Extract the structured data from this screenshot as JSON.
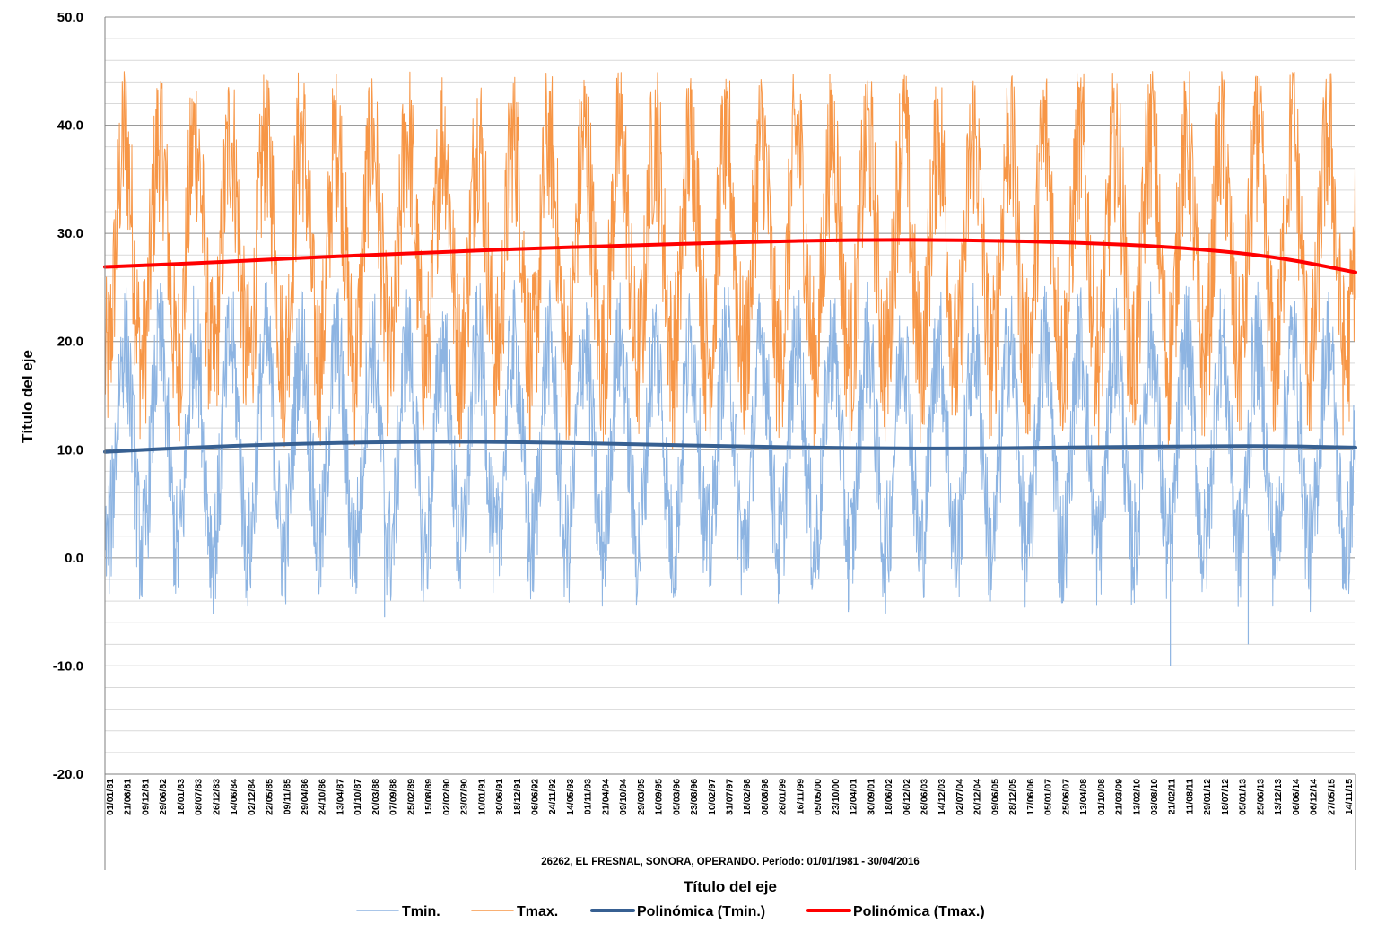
{
  "chart_data": {
    "type": "line",
    "subtitle": "26262, EL FRESNAL, SONORA, OPERANDO. Período: 01/01/1981 - 30/04/2016",
    "xlabel": "Título del eje",
    "ylabel": "Título del eje",
    "ylim": [
      -20,
      50
    ],
    "y_major_step": 10,
    "y_minor_step": 2,
    "y_tick_labels": [
      "-20.0",
      "-10.0",
      "0.0",
      "10.0",
      "20.0",
      "30.0",
      "40.0",
      "50.0"
    ],
    "negative_tick_color": "#ff0000",
    "x_range": [
      "01/01/81",
      "30/04/16"
    ],
    "x_tick_labels": [
      "01/01/81",
      "21/06/81",
      "09/12/81",
      "29/06/82",
      "18/01/83",
      "08/07/83",
      "26/12/83",
      "14/06/84",
      "02/12/84",
      "22/05/85",
      "09/11/85",
      "29/04/86",
      "24/10/86",
      "13/04/87",
      "01/10/87",
      "20/03/88",
      "07/09/88",
      "25/02/89",
      "15/08/89",
      "02/02/90",
      "23/07/90",
      "10/01/91",
      "30/06/91",
      "18/12/91",
      "06/06/92",
      "24/11/92",
      "14/05/93",
      "01/11/93",
      "21/04/94",
      "09/10/94",
      "29/03/95",
      "16/09/95",
      "05/03/96",
      "23/08/96",
      "10/02/97",
      "31/07/97",
      "18/02/98",
      "08/08/98",
      "26/01/99",
      "16/11/99",
      "05/05/00",
      "23/10/00",
      "12/04/01",
      "30/09/01",
      "18/06/02",
      "06/12/02",
      "26/06/03",
      "14/12/03",
      "02/07/04",
      "20/12/04",
      "09/06/05",
      "28/12/05",
      "17/06/06",
      "05/01/07",
      "25/06/07",
      "13/04/08",
      "01/10/08",
      "21/03/09",
      "13/02/10",
      "03/08/10",
      "21/02/11",
      "11/08/11",
      "29/01/12",
      "18/07/12",
      "05/01/13",
      "25/06/13",
      "13/12/13",
      "06/06/14",
      "06/12/14",
      "27/05/15",
      "14/11/15"
    ],
    "legend_position": "bottom",
    "grid": true,
    "series": [
      {
        "name": "Tmin.",
        "kind": "daily",
        "color": "#8db4e2",
        "stroke_width": 1,
        "annual_mean": 10.3,
        "seasonal_amplitude": 9.5,
        "noise_range": 6,
        "approx_max": 27,
        "approx_min": -10
      },
      {
        "name": "Tmax.",
        "kind": "daily",
        "color": "#f79646",
        "stroke_width": 1,
        "annual_mean": 28.5,
        "seasonal_amplitude": 10.5,
        "noise_range": 8,
        "approx_max": 45,
        "approx_min": 6
      },
      {
        "name": "Polinómica (Tmin.)",
        "kind": "trend",
        "color": "#376092",
        "stroke_width": 4,
        "x_years": [
          0,
          3,
          6,
          9,
          12,
          15,
          18,
          21,
          24,
          27,
          30,
          33,
          35.33
        ],
        "values": [
          9.8,
          10.3,
          10.6,
          10.75,
          10.7,
          10.5,
          10.3,
          10.15,
          10.1,
          10.2,
          10.3,
          10.35,
          10.2
        ]
      },
      {
        "name": "Polinómica (Tmax.)",
        "kind": "trend",
        "color": "#ff0000",
        "stroke_width": 4,
        "x_years": [
          0,
          3,
          6,
          9,
          12,
          15,
          18,
          21,
          24,
          27,
          30,
          33,
          35.33
        ],
        "values": [
          26.9,
          27.3,
          27.8,
          28.2,
          28.6,
          28.9,
          29.2,
          29.4,
          29.4,
          29.2,
          28.8,
          27.9,
          26.4
        ]
      }
    ]
  }
}
